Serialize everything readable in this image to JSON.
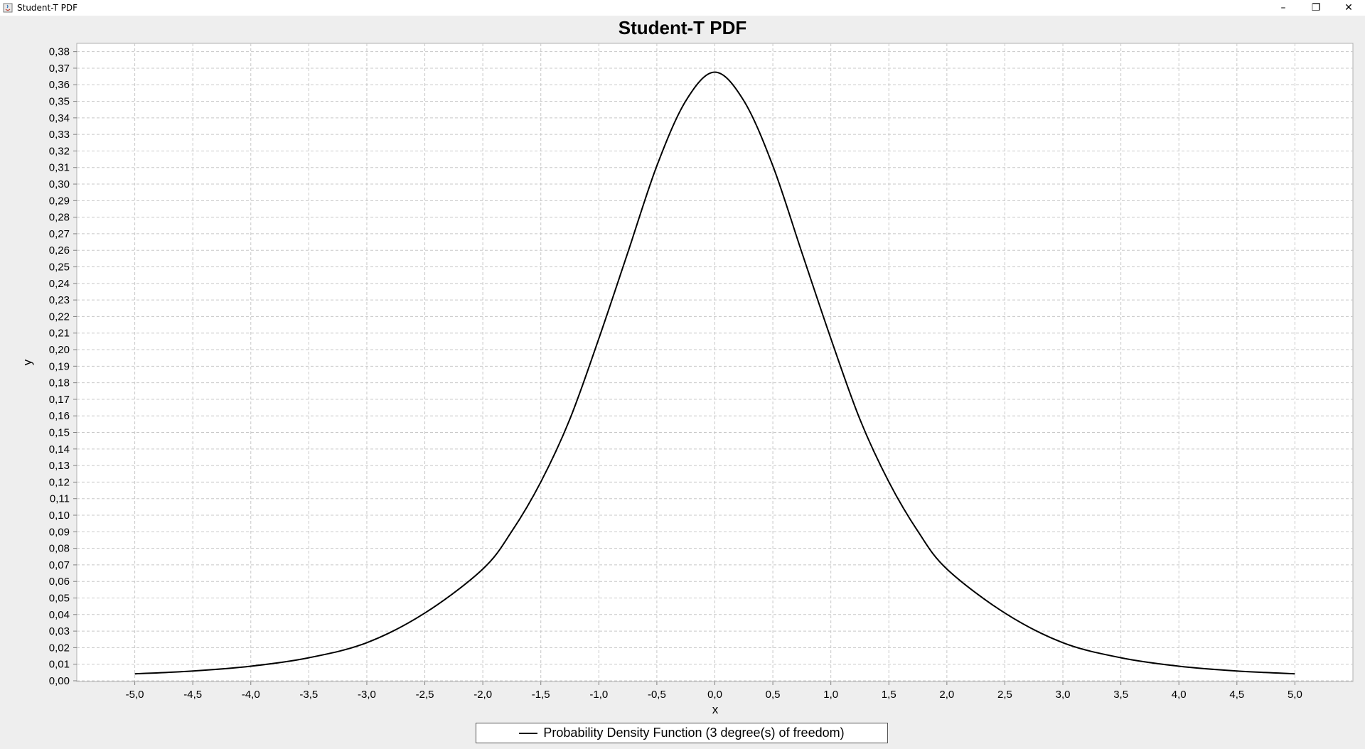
{
  "window": {
    "title": "Student-T PDF",
    "icon": "java-app-icon",
    "controls": {
      "minimize": "–",
      "restore": "❐",
      "close": "✕"
    }
  },
  "chart_data": {
    "type": "line",
    "title": "Student-T PDF",
    "xlabel": "x",
    "ylabel": "y",
    "xlim": [
      -5.5,
      5.5
    ],
    "ylim": [
      0.0,
      0.385
    ],
    "x_ticks": [
      "-5,0",
      "-4,5",
      "-4,0",
      "-3,5",
      "-3,0",
      "-2,5",
      "-2,0",
      "-1,5",
      "-1,0",
      "-0,5",
      "0,0",
      "0,5",
      "1,0",
      "1,5",
      "2,0",
      "2,5",
      "3,0",
      "3,5",
      "4,0",
      "4,5",
      "5,0"
    ],
    "y_ticks": [
      "0,00",
      "0,01",
      "0,02",
      "0,03",
      "0,04",
      "0,05",
      "0,06",
      "0,07",
      "0,08",
      "0,09",
      "0,10",
      "0,11",
      "0,12",
      "0,13",
      "0,14",
      "0,15",
      "0,16",
      "0,17",
      "0,18",
      "0,19",
      "0,20",
      "0,21",
      "0,22",
      "0,23",
      "0,24",
      "0,25",
      "0,26",
      "0,27",
      "0,28",
      "0,29",
      "0,30",
      "0,31",
      "0,32",
      "0,33",
      "0,34",
      "0,35",
      "0,36",
      "0,37",
      "0,38"
    ],
    "grid": true,
    "legend_position": "bottom-center",
    "series": [
      {
        "name": "Probability Density Function (3 degree(s) of freedom)",
        "color": "#000000",
        "x": [
          -5.0,
          -4.5,
          -4.0,
          -3.5,
          -3.0,
          -2.5,
          -2.0,
          -1.75,
          -1.5,
          -1.25,
          -1.0,
          -0.75,
          -0.5,
          -0.25,
          0.0,
          0.25,
          0.5,
          0.75,
          1.0,
          1.25,
          1.5,
          1.75,
          2.0,
          2.5,
          3.0,
          3.5,
          4.0,
          4.5,
          5.0
        ],
        "y": [
          0.0042,
          0.0059,
          0.0088,
          0.0139,
          0.023,
          0.0409,
          0.0675,
          0.0903,
          0.1201,
          0.158,
          0.2067,
          0.2587,
          0.311,
          0.3503,
          0.3676,
          0.3503,
          0.311,
          0.2587,
          0.2067,
          0.158,
          0.1201,
          0.0903,
          0.0675,
          0.0409,
          0.023,
          0.0139,
          0.0088,
          0.0059,
          0.0042
        ]
      }
    ]
  },
  "colors": {
    "background": "#eeeeee",
    "plot_background": "#ffffff",
    "grid": "#c8c8c8",
    "line": "#000000"
  }
}
